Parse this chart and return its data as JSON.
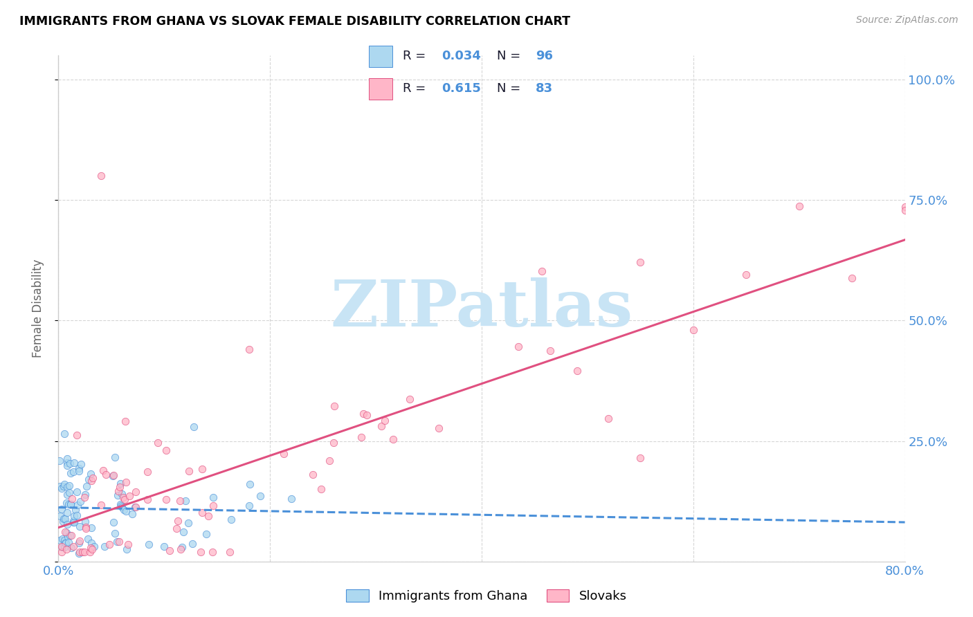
{
  "title": "IMMIGRANTS FROM GHANA VS SLOVAK FEMALE DISABILITY CORRELATION CHART",
  "source": "Source: ZipAtlas.com",
  "ylabel": "Female Disability",
  "x_min": 0.0,
  "x_max": 0.8,
  "y_min": 0.0,
  "y_max": 1.05,
  "ghana_color": "#ADD8F0",
  "ghana_color_dark": "#4A90D9",
  "ghana_edge": "#4A90D9",
  "slovak_color": "#FFB6C8",
  "slovak_color_dark": "#E05080",
  "slovak_edge": "#E05080",
  "ghana_R": 0.034,
  "ghana_N": 96,
  "slovak_R": 0.615,
  "slovak_N": 83,
  "watermark_text": "ZIPatlas",
  "watermark_color": "#C8E4F5",
  "legend_label_ghana": "Immigrants from Ghana",
  "legend_label_slovak": "Slovaks",
  "legend_text_color": "#1a1a2e",
  "legend_value_color": "#4A90D9",
  "tick_color": "#4A90D9"
}
